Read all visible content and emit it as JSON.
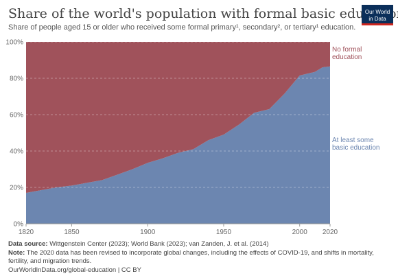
{
  "header": {
    "title": "Share of the world's population with formal basic education",
    "subtitle": "Share of people aged 15 or older who received some formal primary¹, secondary², or tertiary¹ education.",
    "logo_line1": "Our World",
    "logo_line2": "in Data"
  },
  "chart_data": {
    "type": "area",
    "stacked": true,
    "x": [
      1820,
      1830,
      1840,
      1850,
      1860,
      1870,
      1880,
      1890,
      1900,
      1910,
      1920,
      1930,
      1940,
      1950,
      1960,
      1970,
      1980,
      1990,
      2000,
      2010,
      2015,
      2020
    ],
    "series": [
      {
        "name": "At least some basic education",
        "label_lines": [
          "At least some",
          "basic education"
        ],
        "color": "#6c86b0",
        "values": [
          17,
          18.5,
          20,
          21,
          22.5,
          24,
          27,
          30,
          33.5,
          36,
          39,
          41,
          46,
          49,
          54.5,
          61,
          63,
          71.5,
          81.5,
          83.5,
          86,
          86.5
        ]
      },
      {
        "name": "No formal education",
        "label_lines": [
          "No formal",
          "education"
        ],
        "color": "#a0525b",
        "values": [
          83,
          81.5,
          80,
          79,
          77.5,
          76,
          73,
          70,
          66.5,
          64,
          61,
          59,
          54,
          51,
          45.5,
          39,
          37,
          28.5,
          18.5,
          16.5,
          14,
          13.5
        ]
      }
    ],
    "xlim": [
      1820,
      2020
    ],
    "ylim": [
      0,
      100
    ],
    "y_ticks": [
      0,
      20,
      40,
      60,
      80,
      100
    ],
    "y_tick_labels": [
      "0%",
      "20%",
      "40%",
      "60%",
      "80%",
      "100%"
    ],
    "x_ticks": [
      1820,
      1850,
      1900,
      1950,
      2000,
      2020
    ],
    "x_tick_labels": [
      "1820",
      "1850",
      "1900",
      "1950",
      "2000",
      "2020"
    ],
    "grid": true,
    "legend_placement": "right"
  },
  "footer": {
    "source_label": "Data source:",
    "source_text": " Wittgenstein Center (2023); World Bank (2023); van Zanden, J. et al. (2014)",
    "note_label": "Note:",
    "note_text": " The 2020 data has been revised to incorporate global changes, including the effects of COVID-19, and shifts in mortality, fertility, and migration trends.",
    "url_text": "OurWorldInData.org/global-education | CC BY"
  }
}
